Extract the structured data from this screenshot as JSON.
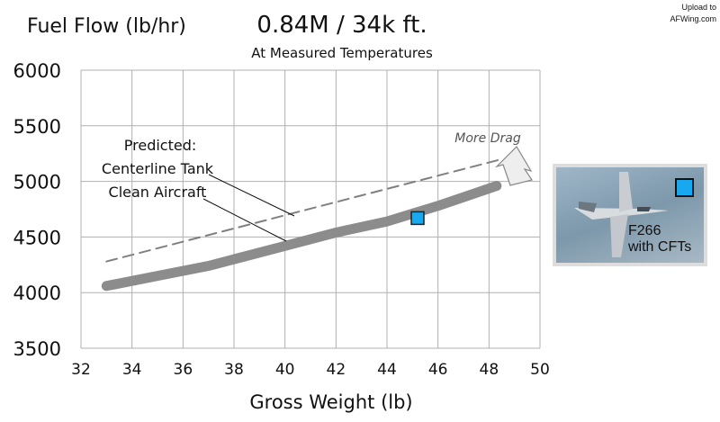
{
  "chart_data": {
    "type": "line",
    "title": "0.84M / 34k ft.",
    "subtitle": "At Measured Temperatures",
    "ylabel": "Fuel Flow (lb/hr)",
    "xlabel": "Gross Weight (lb)",
    "xlim": [
      32,
      50
    ],
    "ylim": [
      3500,
      6000
    ],
    "xticks": [
      "32",
      "34",
      "36",
      "38",
      "40",
      "42",
      "44",
      "46",
      "48",
      "50"
    ],
    "yticks": [
      "3500",
      "4000",
      "4500",
      "5000",
      "5500",
      "6000"
    ],
    "grid": true,
    "series": [
      {
        "name": "Predicted: Clean Aircraft",
        "style": "solid-thick",
        "color": "#8c8c8c",
        "points": [
          [
            33,
            4060
          ],
          [
            35,
            4150
          ],
          [
            37,
            4240
          ],
          [
            38,
            4300
          ],
          [
            40,
            4420
          ],
          [
            42,
            4540
          ],
          [
            44,
            4640
          ],
          [
            46,
            4780
          ],
          [
            48.3,
            4960
          ]
        ]
      },
      {
        "name": "Predicted: Centerline Tank",
        "style": "dashed",
        "color": "#808080",
        "points": [
          [
            33,
            4280
          ],
          [
            48.5,
            5200
          ]
        ]
      },
      {
        "name": "F266 with CFTs",
        "style": "marker",
        "color": "#17a9f0",
        "points": [
          [
            45.2,
            4670
          ]
        ]
      }
    ],
    "annotations": {
      "predicted": "Predicted:",
      "centerline": "Centerline Tank",
      "clean": "Clean Aircraft",
      "more_drag": "More Drag"
    },
    "inset": {
      "line1": "F266",
      "line2": "with CFTs"
    }
  },
  "watermark": {
    "line1": "Upload to",
    "line2": "AFWing.com"
  }
}
